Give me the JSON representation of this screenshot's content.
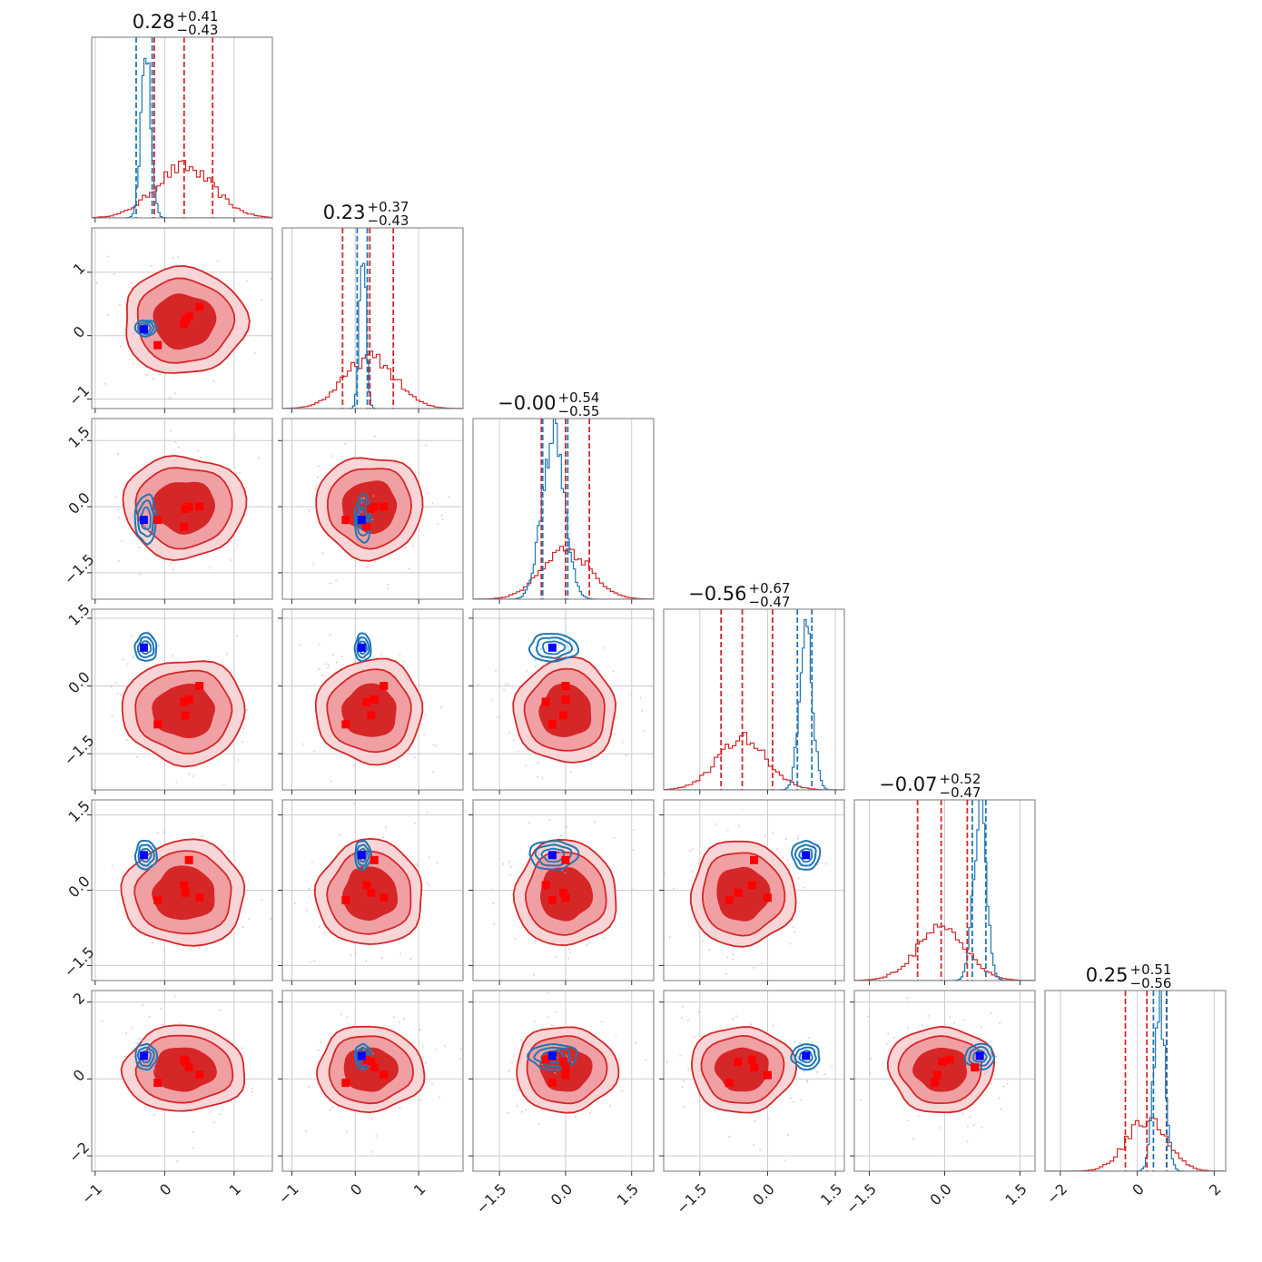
{
  "chart_data": {
    "type": "corner",
    "colors": {
      "red_posterior": "#d62728",
      "red_light": "#f0a0a3",
      "blue_posterior": "#1f77b4",
      "red_marker": "#ff0000",
      "blue_marker": "#0000ff",
      "grid": "#cccccc"
    },
    "params": [
      {
        "title_main": "0.28",
        "title_plus": "+0.41",
        "title_minus": "−0.43",
        "range": [
          -1.05,
          1.55
        ],
        "ticks": [
          -1,
          0,
          1
        ],
        "tick_labels": [
          "−1",
          "0",
          "1"
        ],
        "blue": {
          "center": -0.27,
          "width": 0.07,
          "quantiles": [
            -0.41,
            -0.18
          ]
        },
        "red": {
          "center": 0.28,
          "width": 0.42,
          "quantiles": [
            -0.15,
            0.69
          ]
        }
      },
      {
        "title_main": "0.23",
        "title_plus": "+0.37",
        "title_minus": "−0.43",
        "range": [
          -1.15,
          1.7
        ],
        "ticks": [
          -1,
          0,
          1
        ],
        "tick_labels": [
          "−1",
          "0",
          "1"
        ],
        "blue": {
          "center": 0.12,
          "width": 0.05,
          "quantiles": [
            0.03,
            0.19
          ]
        },
        "red": {
          "center": 0.23,
          "width": 0.4,
          "quantiles": [
            -0.2,
            0.6
          ]
        }
      },
      {
        "title_main": "−0.00",
        "title_plus": "+0.54",
        "title_minus": "−0.55",
        "range": [
          -2.1,
          2.0
        ],
        "ticks": [
          -1.5,
          0,
          1.5
        ],
        "tick_labels": [
          "−1.5",
          "0.0",
          "1.5"
        ],
        "blue": {
          "center": -0.28,
          "width": 0.25,
          "quantiles": [
            -0.52,
            0.05
          ]
        },
        "red": {
          "center": 0.0,
          "width": 0.55,
          "quantiles": [
            -0.55,
            0.54
          ]
        }
      },
      {
        "title_main": "−0.56",
        "title_plus": "+0.67",
        "title_minus": "−0.47",
        "range": [
          -2.3,
          1.7
        ],
        "ticks": [
          -1.5,
          0,
          1.5
        ],
        "tick_labels": [
          "−1.5",
          "0.0",
          "1.5"
        ],
        "blue": {
          "center": 0.85,
          "width": 0.14,
          "quantiles": [
            0.66,
            0.98
          ]
        },
        "red": {
          "center": -0.56,
          "width": 0.55,
          "quantiles": [
            -1.03,
            0.11
          ]
        }
      },
      {
        "title_main": "−0.07",
        "title_plus": "+0.52",
        "title_minus": "−0.47",
        "range": [
          -1.8,
          1.8
        ],
        "ticks": [
          -1.5,
          0,
          1.5
        ],
        "tick_labels": [
          "−1.5",
          "0.0",
          "1.5"
        ],
        "blue": {
          "center": 0.7,
          "width": 0.13,
          "quantiles": [
            0.55,
            0.82
          ]
        },
        "red": {
          "center": -0.07,
          "width": 0.5,
          "quantiles": [
            -0.54,
            0.45
          ]
        }
      },
      {
        "title_main": "0.25",
        "title_plus": "+0.51",
        "title_minus": "−0.56",
        "range": [
          -2.4,
          2.3
        ],
        "ticks": [
          -2,
          0,
          2
        ],
        "tick_labels": [
          "−2",
          "0",
          "2"
        ],
        "blue": {
          "center": 0.58,
          "width": 0.15,
          "quantiles": [
            0.42,
            0.77
          ]
        },
        "red": {
          "center": 0.25,
          "width": 0.53,
          "quantiles": [
            -0.31,
            0.76
          ]
        }
      }
    ],
    "blue_markers": [
      -0.3,
      0.1,
      -0.3,
      0.85,
      0.7,
      0.6
    ],
    "red_markers": [
      [
        0.3,
        0.25,
        -0.05,
        -0.65,
        -0.05,
        0.45
      ],
      [
        0.35,
        0.3,
        0.0,
        -0.3,
        0.6,
        0.3
      ],
      [
        0.5,
        0.45,
        0.0,
        0.0,
        -0.15,
        0.1
      ],
      [
        -0.1,
        -0.15,
        -0.3,
        -0.85,
        -0.2,
        -0.1
      ],
      [
        0.28,
        0.18,
        -0.45,
        -0.35,
        0.1,
        0.5
      ]
    ]
  }
}
